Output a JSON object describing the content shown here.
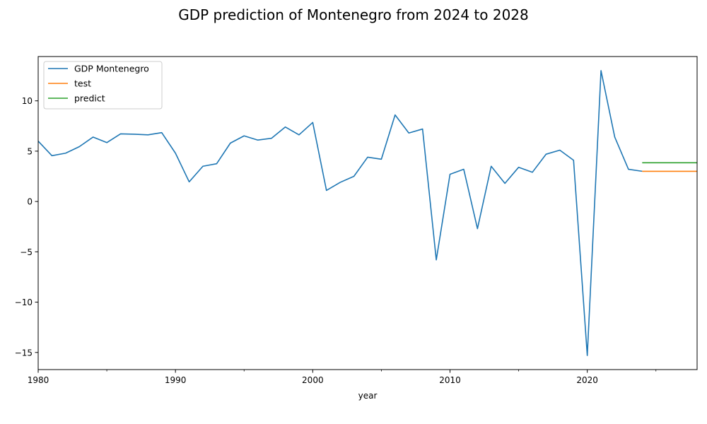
{
  "chart_data": {
    "type": "line",
    "title": "GDP prediction of Montenegro from 2024 to 2028",
    "xlabel": "year",
    "ylabel": "",
    "xlim": [
      1980,
      2028
    ],
    "ylim": [
      -16.7,
      14.4
    ],
    "x_major_ticks": [
      1980,
      1990,
      2000,
      2010,
      2020
    ],
    "x_minor_ticks": [
      1985,
      1995,
      2005,
      2015,
      2025
    ],
    "y_ticks": [
      -15,
      -10,
      -5,
      0,
      5,
      10
    ],
    "legend_position": "upper-left",
    "grid": false,
    "series": [
      {
        "name": "GDP Montenegro",
        "color": "#1f77b4",
        "x": [
          1980,
          1981,
          1982,
          1983,
          1984,
          1985,
          1986,
          1987,
          1988,
          1989,
          1990,
          1991,
          1992,
          1993,
          1994,
          1995,
          1996,
          1997,
          1998,
          1999,
          2000,
          2001,
          2002,
          2003,
          2004,
          2005,
          2006,
          2007,
          2008,
          2009,
          2010,
          2011,
          2012,
          2013,
          2014,
          2015,
          2016,
          2017,
          2018,
          2019,
          2020,
          2021,
          2022,
          2023,
          2024
        ],
        "y": [
          6.0,
          4.55,
          4.8,
          5.45,
          6.4,
          5.85,
          6.72,
          6.68,
          6.62,
          6.84,
          4.8,
          1.95,
          3.5,
          3.75,
          5.8,
          6.52,
          6.1,
          6.28,
          7.4,
          6.62,
          7.85,
          1.1,
          1.9,
          2.5,
          4.4,
          4.2,
          8.6,
          6.8,
          7.2,
          -5.8,
          2.7,
          3.2,
          -2.7,
          3.5,
          1.8,
          3.4,
          2.9,
          4.7,
          5.1,
          4.1,
          -15.3,
          13.0,
          6.4,
          3.2,
          3.0
        ]
      },
      {
        "name": "test",
        "color": "#ff7f0e",
        "x": [
          2024,
          2025,
          2026,
          2027,
          2028
        ],
        "y": [
          3.0,
          3.0,
          3.0,
          3.0,
          3.0
        ]
      },
      {
        "name": "predict",
        "color": "#2ca02c",
        "x": [
          2024,
          2025,
          2026,
          2027,
          2028
        ],
        "y": [
          3.85,
          3.85,
          3.85,
          3.85,
          3.85
        ]
      }
    ]
  }
}
